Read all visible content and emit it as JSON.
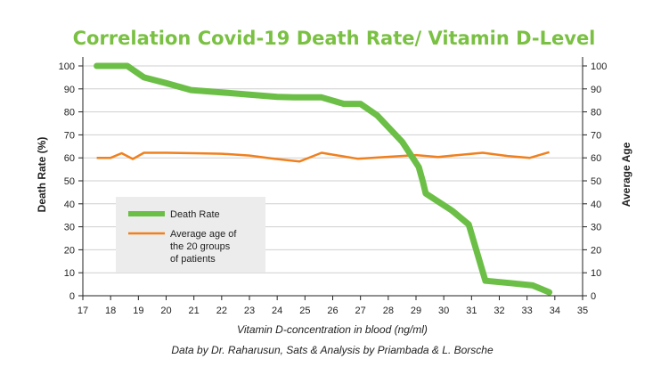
{
  "colors": {
    "title": "#7ac143",
    "death_rate": "#6cbf46",
    "average_age": "#f0801e",
    "grid": "#cfcfcf",
    "axis": "#222222",
    "legend_bg": "#ececec"
  },
  "source_note": "Data by Dr. Raharusun, Sats & Analysis by Priambada & L. Borsche",
  "chart_data": {
    "type": "line",
    "title": "Correlation Covid-19 Death Rate/ Vitamin D-Level",
    "xlabel": "Vitamin D-concentration in blood (ng/ml)",
    "ylabel": "Death Rate (%)",
    "y2label": "Average Age",
    "xlim": [
      17,
      35
    ],
    "ylim": [
      0,
      100
    ],
    "y2lim": [
      0,
      100
    ],
    "xticks": [
      17,
      18,
      19,
      20,
      21,
      22,
      23,
      24,
      25,
      26,
      27,
      28,
      29,
      30,
      31,
      32,
      33,
      34,
      35
    ],
    "yticks": [
      0,
      10,
      20,
      30,
      40,
      50,
      60,
      70,
      80,
      90,
      100
    ],
    "y2ticks": [
      0,
      10,
      20,
      30,
      40,
      50,
      60,
      70,
      80,
      90,
      100
    ],
    "grid": "horizontal",
    "legend_position": "lower-left",
    "series": [
      {
        "name": "Death Rate",
        "axis": "left",
        "x": [
          17.5,
          18.6,
          19.2,
          20.0,
          20.9,
          22.0,
          23.0,
          24.0,
          24.6,
          25.6,
          26.4,
          27.0,
          27.6,
          28.5,
          29.1,
          29.25,
          29.35,
          30.3,
          30.9,
          31.5,
          32.4,
          33.2,
          33.8
        ],
        "values": [
          100,
          100,
          95,
          92.5,
          89.5,
          88.5,
          87.5,
          86.5,
          86.3,
          86.3,
          83.5,
          83.5,
          78.5,
          67,
          56,
          49.5,
          44.5,
          37,
          31,
          6.5,
          5.5,
          4.5,
          1.5
        ]
      },
      {
        "name": "Average age of the 20 groups of patients",
        "axis": "right",
        "x": [
          17.5,
          18.0,
          18.4,
          18.8,
          19.2,
          20.0,
          21.0,
          22.0,
          23.0,
          23.9,
          24.8,
          25.6,
          26.1,
          26.9,
          27.9,
          29.0,
          29.8,
          30.5,
          31.4,
          32.3,
          33.1,
          33.8
        ],
        "values": [
          60,
          60,
          62,
          59.5,
          62.2,
          62.2,
          62,
          61.8,
          61,
          59.6,
          58.4,
          62.2,
          61.2,
          59.6,
          60.4,
          61.2,
          60.4,
          61.2,
          62.2,
          60.8,
          60,
          62.5
        ]
      }
    ]
  }
}
